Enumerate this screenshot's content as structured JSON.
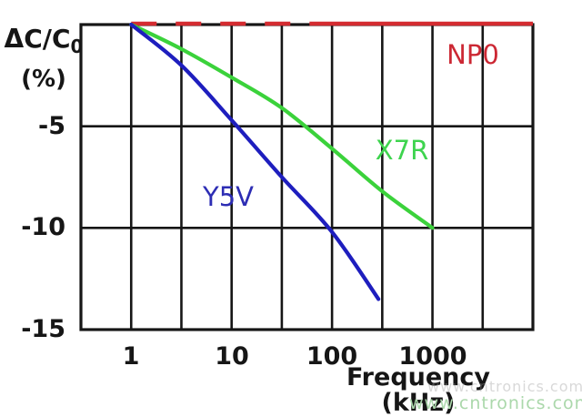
{
  "figure": {
    "background_color": "#ffffff",
    "grid_color": "#161616"
  },
  "chart_data": {
    "type": "line",
    "title": "",
    "description": "Capacitance change versus frequency for NP0, X7R and Y5V ceramic capacitor dielectrics",
    "grid": "on",
    "legend_position": "inline labels next to curves",
    "x_axis": {
      "label": "Frequency (kHz)",
      "scale": "log10",
      "min_khz": 0.316,
      "max_khz": 10000,
      "gridlines": "every half decade",
      "ticks": [
        {
          "value": 1,
          "label": "1"
        },
        {
          "value": 10,
          "label": "10"
        },
        {
          "value": 100,
          "label": "100"
        },
        {
          "value": 1000,
          "label": "1000"
        }
      ]
    },
    "y_axis": {
      "title_main": "ΔC/C",
      "title_sub": "0",
      "unit_label": "(%)",
      "min": -15,
      "max": 0,
      "gridline_step": 5,
      "ticks": [
        {
          "value": -5,
          "label": "-5"
        },
        {
          "value": -10,
          "label": "-10"
        },
        {
          "value": -15,
          "label": "-15"
        }
      ]
    },
    "series": [
      {
        "name": "NP0",
        "label": "NP0",
        "color": "#d42b30",
        "label_color": "#cc2834",
        "line_style": "dashed from 1 to ~60 kHz, then solid",
        "dash_until_khz": 60,
        "points": [
          [
            1,
            0
          ],
          [
            10000,
            0
          ]
        ]
      },
      {
        "name": "X7R",
        "label": "X7R",
        "color": "#3bd23b",
        "label_color": "#3ed44e",
        "line_style": "solid",
        "points": [
          [
            1,
            0
          ],
          [
            3.16,
            -1.2
          ],
          [
            10,
            -2.6
          ],
          [
            31.6,
            -4.1
          ],
          [
            100,
            -6.1
          ],
          [
            316,
            -8.2
          ],
          [
            1000,
            -10
          ]
        ]
      },
      {
        "name": "Y5V",
        "label": "Y5V",
        "color": "#1e1ebe",
        "label_color": "#2d2db4",
        "line_style": "solid",
        "points": [
          [
            1,
            0
          ],
          [
            3.16,
            -2.0
          ],
          [
            10,
            -4.7
          ],
          [
            31.6,
            -7.5
          ],
          [
            100,
            -10.2
          ],
          [
            290,
            -13.5
          ]
        ]
      }
    ]
  },
  "watermark": {
    "text": "www.cntronics.com",
    "ghost_text": "www.cntronics.com",
    "color": "#abd8ab",
    "ghost_color": "#9a9a9a"
  }
}
